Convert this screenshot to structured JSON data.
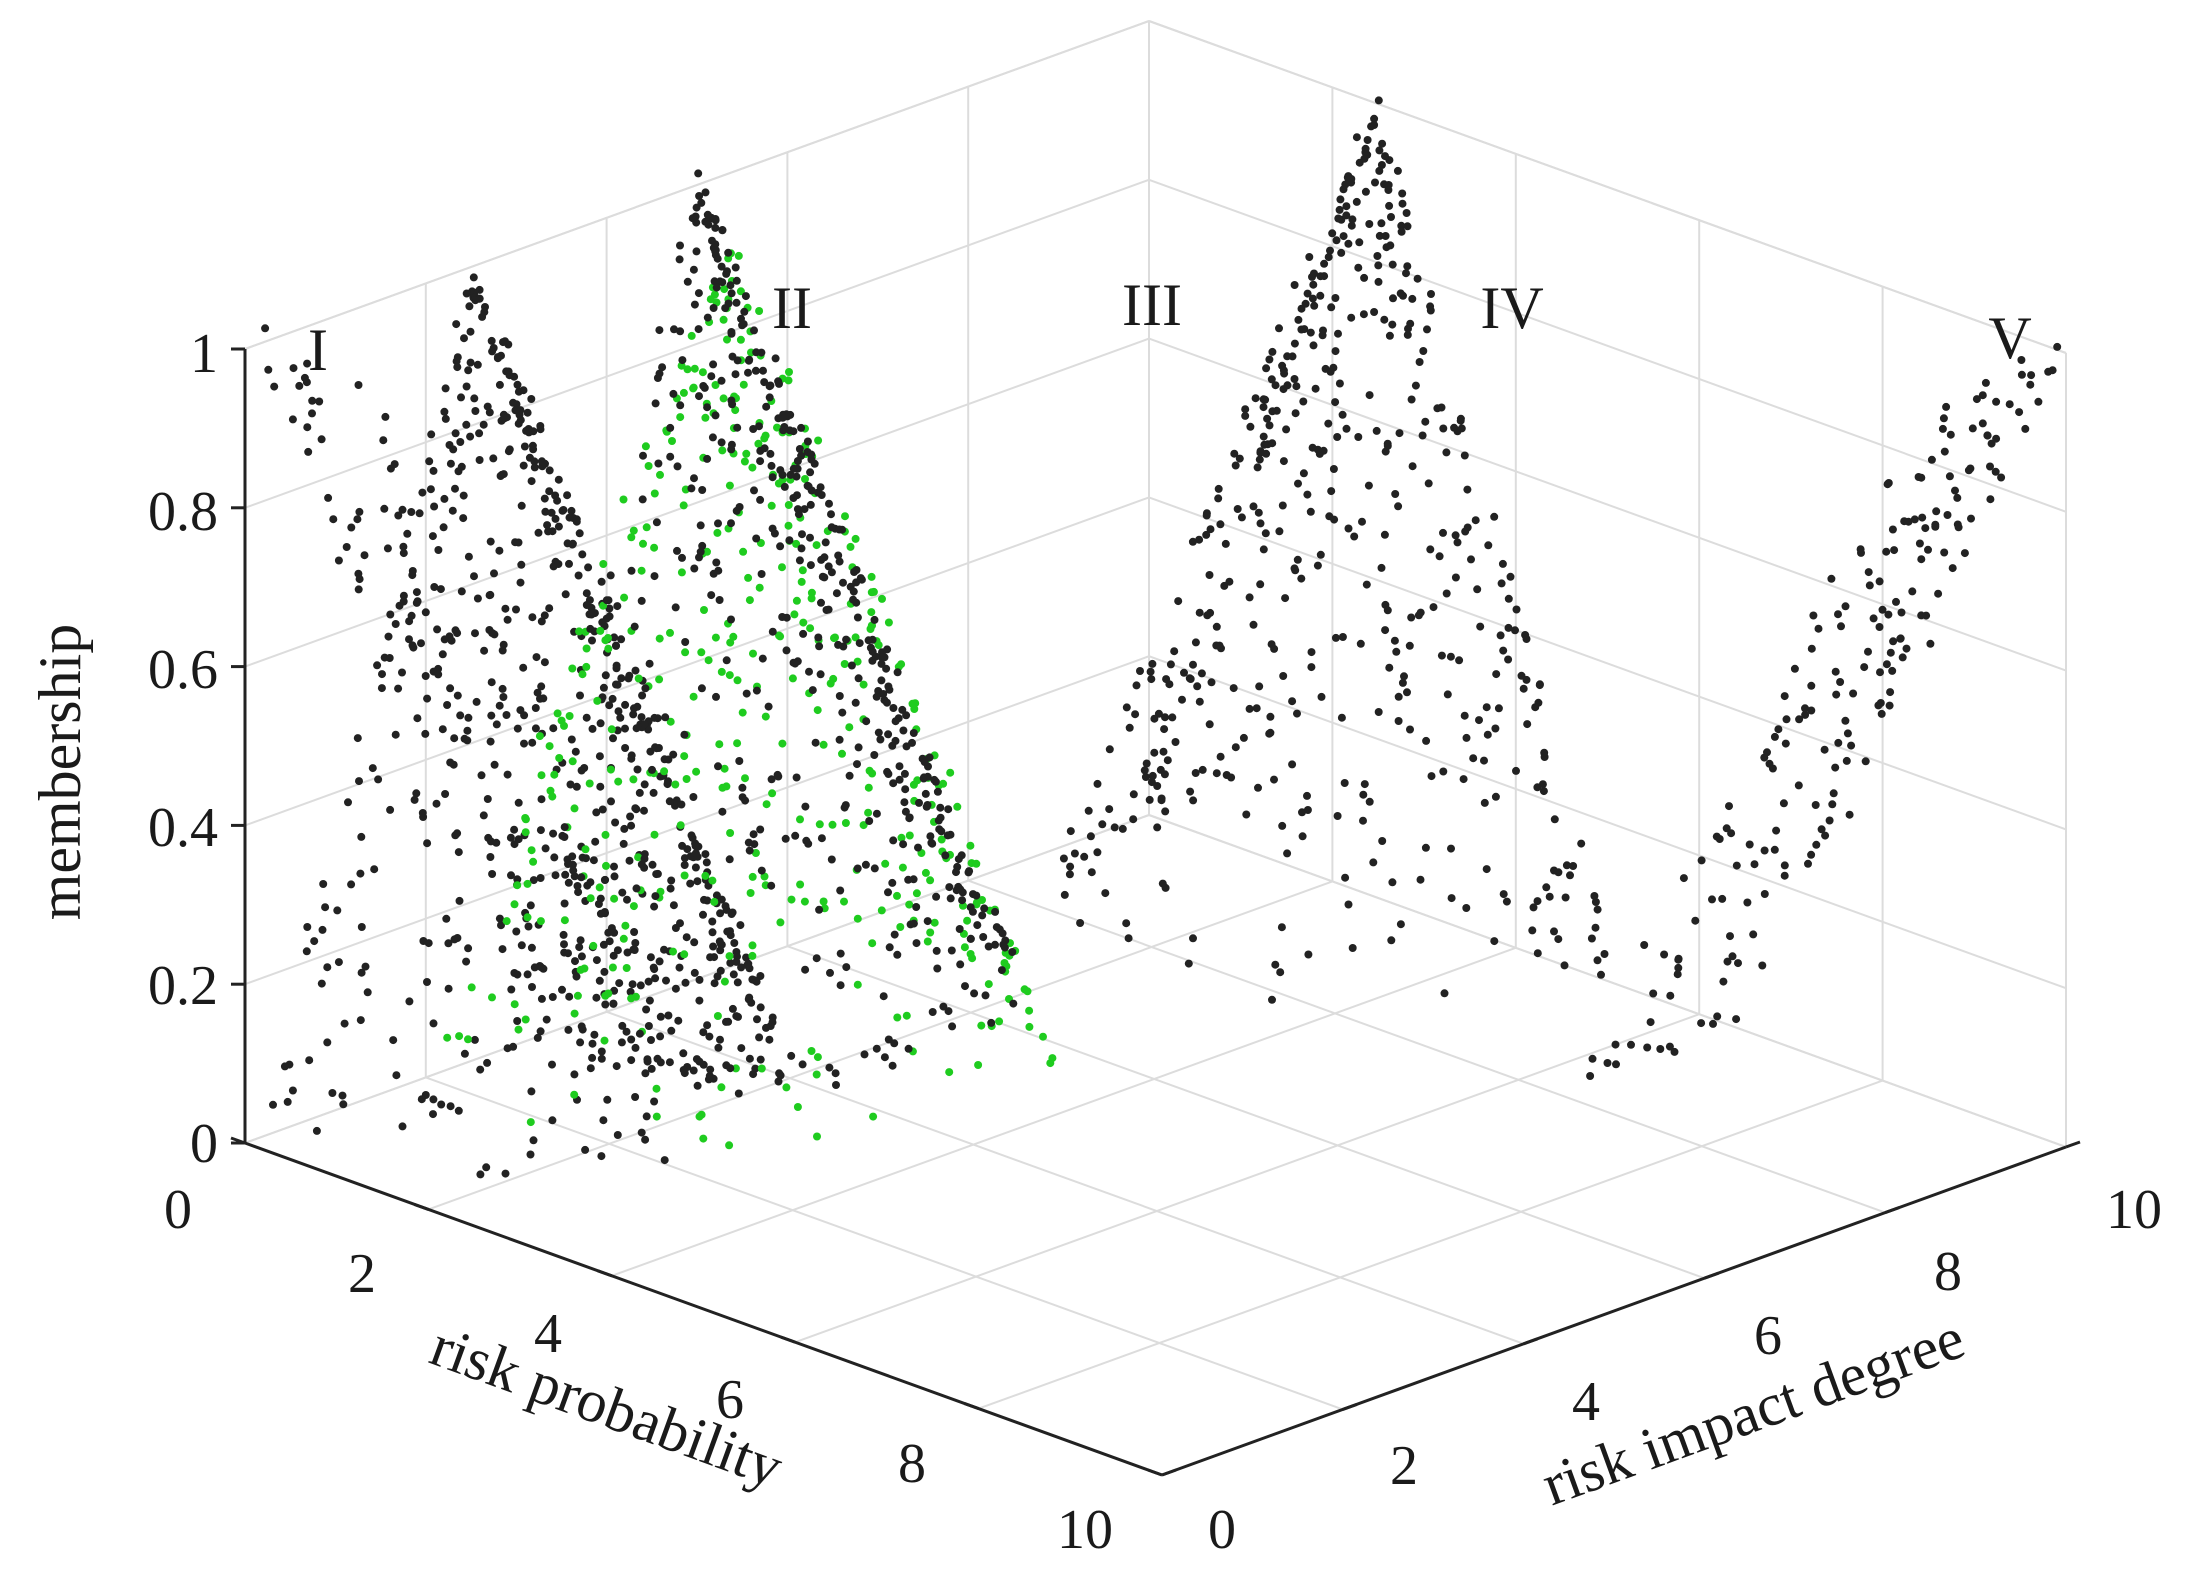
{
  "chart_data": {
    "type": "scatter",
    "projection": "3d",
    "title": "",
    "xlabel": "risk  probability",
    "ylabel": "risk impact degree",
    "zlabel": "membership",
    "xlim": [
      0,
      10
    ],
    "ylim": [
      0,
      10
    ],
    "zlim": [
      0,
      1
    ],
    "x_ticks": [
      "0",
      "2",
      "4",
      "6",
      "8",
      "10"
    ],
    "y_ticks": [
      "0",
      "2",
      "4",
      "6",
      "8",
      "10"
    ],
    "z_ticks": [
      "0",
      "0.2",
      "0.4",
      "0.6",
      "0.8",
      "1"
    ],
    "grid": true,
    "peak_labels": [
      {
        "text": "I",
        "x": 0,
        "y": 0,
        "z": 1
      },
      {
        "text": "II",
        "x": 0,
        "y": 2.5,
        "z": 1
      },
      {
        "text": "III",
        "x": 0,
        "y": 5,
        "z": 1
      },
      {
        "text": "IV",
        "x": 2.5,
        "y": 10,
        "z": 1
      },
      {
        "text": "V",
        "x": 10,
        "y": 10,
        "z": 1
      }
    ],
    "series": [
      {
        "color": "#222222",
        "shape": "ramp-down",
        "peak": [
          0,
          0
        ],
        "points_approx": 420
      },
      {
        "color": "#222222",
        "shape": "triangle",
        "peak": [
          0,
          2.5
        ],
        "points_approx": 1200
      },
      {
        "color": "#1fcc1f",
        "shape": "triangle",
        "peak": [
          1.2,
          4.2
        ],
        "points_approx": 900
      },
      {
        "color": "#222222",
        "shape": "triangle",
        "peak": [
          0,
          5
        ],
        "points_approx": 1200
      },
      {
        "color": "#222222",
        "shape": "triangle",
        "peak": [
          2.5,
          10
        ],
        "points_approx": 1100
      },
      {
        "color": "#222222",
        "shape": "ramp-up",
        "peak": [
          10,
          10
        ],
        "points_approx": 420
      }
    ]
  }
}
